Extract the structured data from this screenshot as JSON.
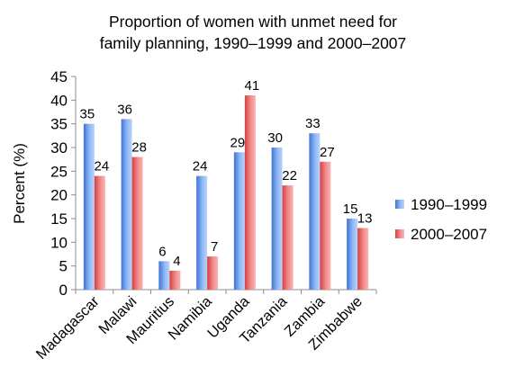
{
  "chart_data": {
    "type": "bar",
    "title_line1": "Proportion of women with unmet need for",
    "title_line2": "family planning, 1990–1999 and 2000–2007",
    "ylabel": "Percent (%)",
    "xlabel": "",
    "ylim": [
      0,
      45
    ],
    "yticks": [
      "0",
      "5",
      "10",
      "15",
      "20",
      "25",
      "30",
      "35",
      "40",
      "45"
    ],
    "grid": false,
    "legend_position": "right",
    "categories": [
      "Madagascar",
      "Malawi",
      "Mauritius",
      "Namibia",
      "Uganda",
      "Tanzania",
      "Zambia",
      "Zimbabwe"
    ],
    "series": [
      {
        "name": "1990–1999",
        "color": "#5b8fe0",
        "values": [
          35,
          36,
          6,
          24,
          29,
          30,
          33,
          15
        ]
      },
      {
        "name": "2000–2007",
        "color": "#e05b5b",
        "values": [
          24,
          28,
          4,
          7,
          41,
          22,
          27,
          13
        ]
      }
    ]
  }
}
